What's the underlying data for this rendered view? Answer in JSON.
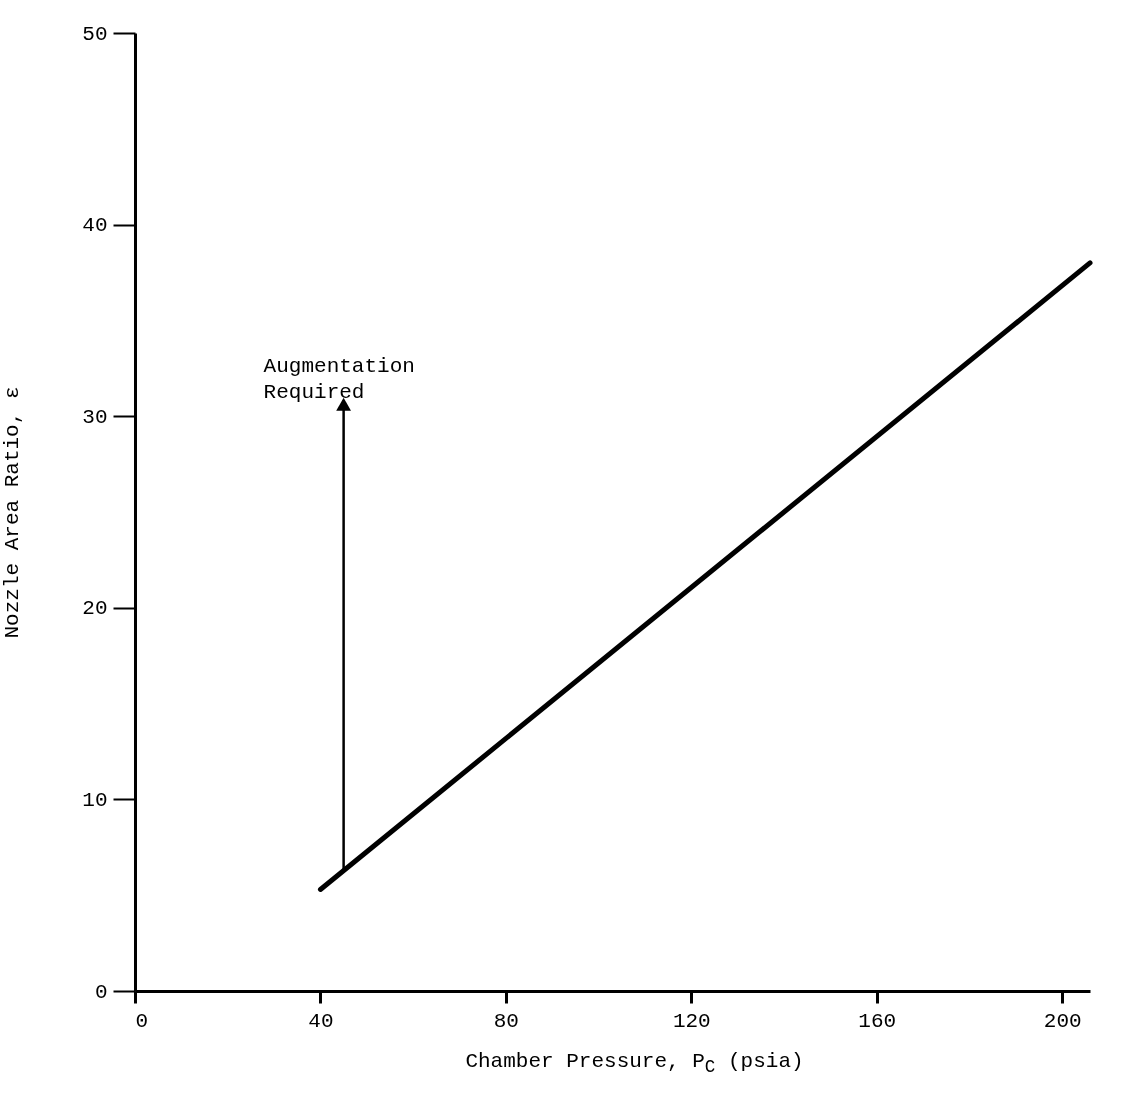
{
  "chart_data": {
    "type": "line",
    "xlabel": "Chamber Pressure, P$_{C}$ (psia)",
    "ylabel": "Nozzle Area Ratio, ε",
    "x": [
      40,
      206
    ],
    "series": [
      {
        "color": "#000000",
        "values": [
          5.3,
          38.0
        ]
      }
    ],
    "xlim": [
      0,
      206
    ],
    "xticks": [
      0,
      40,
      80,
      120,
      160,
      200
    ],
    "ylim": [
      0,
      50
    ],
    "yticks": [
      0,
      10,
      20,
      30,
      40,
      50
    ],
    "grid": false,
    "marker": "none",
    "line_style": "solid",
    "annotations": [
      {
        "text": "Augmentation Required",
        "x": 45,
        "y": 6.3
      }
    ]
  }
}
